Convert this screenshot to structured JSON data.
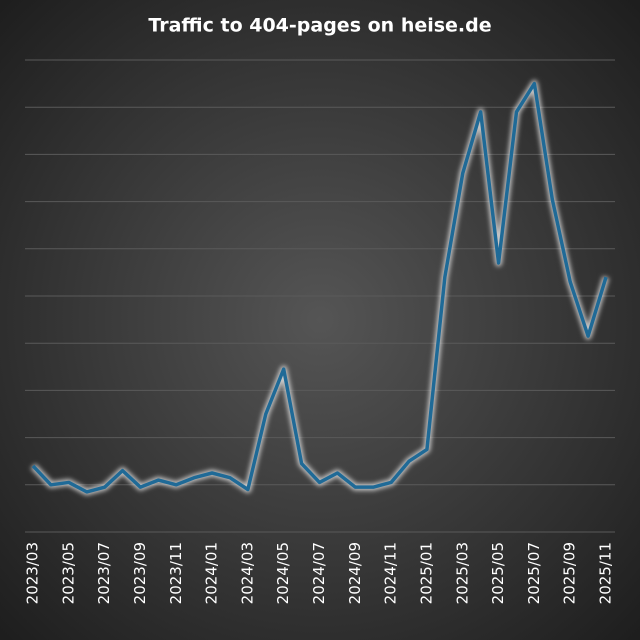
{
  "chart_data": {
    "type": "line",
    "title": "Traffic to 404-pages on heise.de",
    "categories": [
      "2023/03",
      null,
      "2023/05",
      null,
      "2023/07",
      null,
      "2023/09",
      null,
      "2023/11",
      null,
      "2024/01",
      null,
      "2024/03",
      null,
      "2024/05",
      null,
      "2024/07",
      null,
      "2024/09",
      null,
      "2024/11",
      null,
      "2025/01",
      null,
      "2025/03",
      null,
      "2025/05",
      null,
      "2025/07",
      null,
      "2025/09",
      null,
      "2025/11"
    ],
    "series": [
      {
        "color": "#1f6a97",
        "values": [
          1.4,
          1.0,
          1.05,
          0.85,
          0.95,
          1.3,
          0.95,
          1.1,
          1.0,
          1.15,
          1.25,
          1.15,
          0.9,
          2.5,
          3.45,
          1.45,
          1.05,
          1.25,
          0.95,
          0.95,
          1.05,
          1.5,
          1.75,
          5.4,
          7.6,
          8.9,
          5.7,
          8.9,
          9.5,
          7.05,
          5.3,
          4.15,
          5.4
        ]
      }
    ],
    "ylim": [
      0,
      10
    ],
    "yticks": [
      0,
      1,
      2,
      3,
      4,
      5,
      6,
      7,
      8,
      9,
      10
    ],
    "grid": true
  }
}
